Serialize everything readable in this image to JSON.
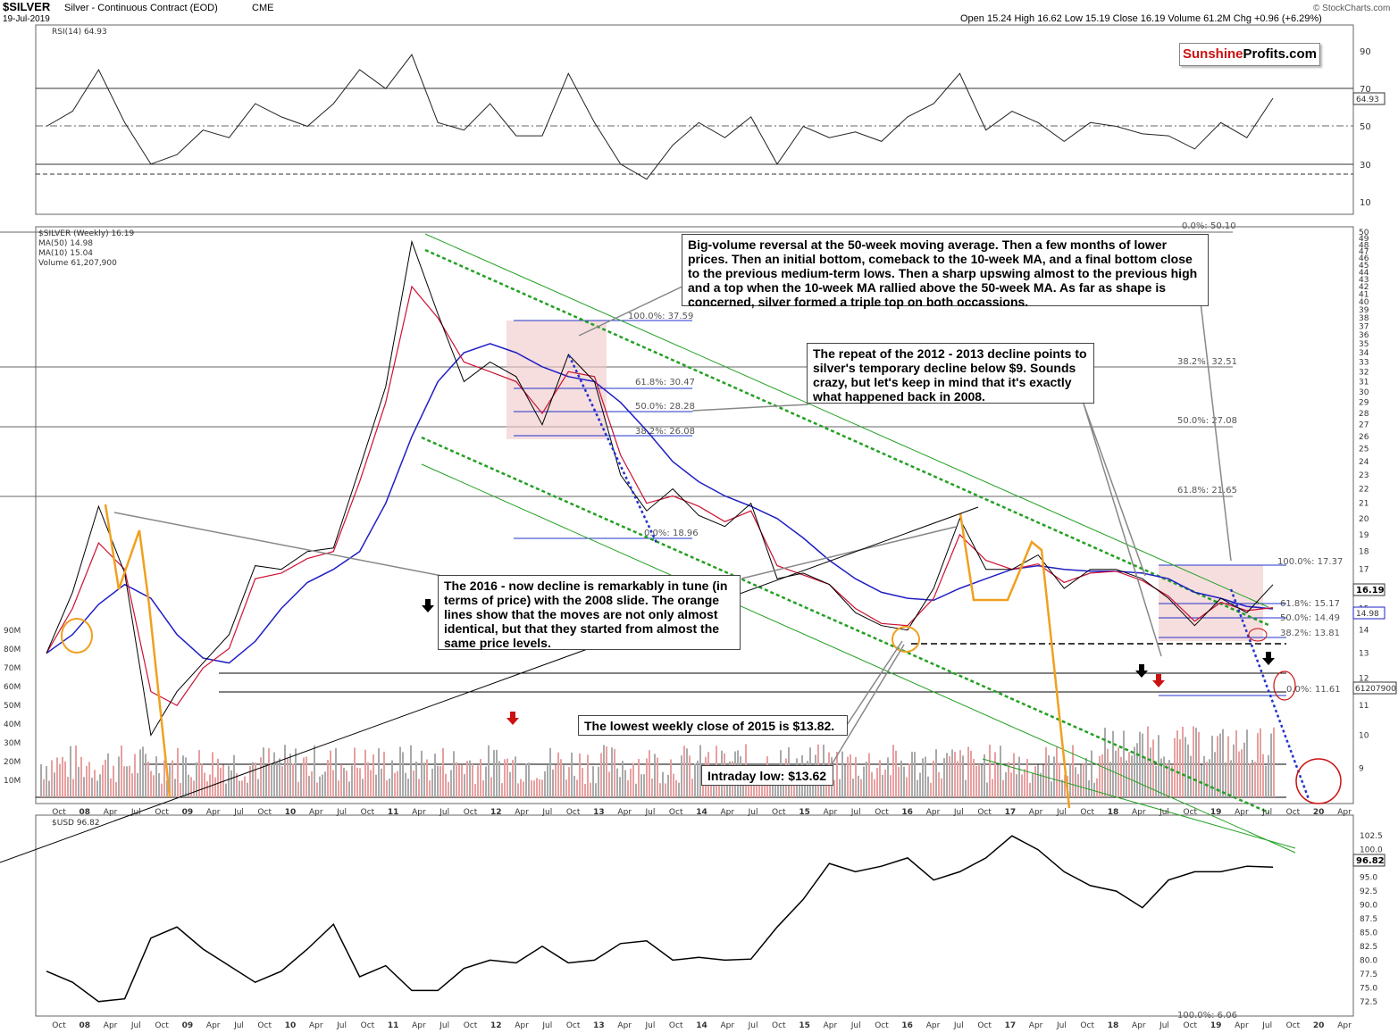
{
  "header": {
    "symbol": "$SILVER",
    "name": "Silver - Continuous Contract (EOD)",
    "exchange": "CME",
    "date": "19-Jul-2019",
    "ohlc": "Open 15.24  High 16.62  Low 15.19  Close 16.19  Volume 61.2M  Chg +0.96 (+6.29%)",
    "copyright": "© StockCharts.com"
  },
  "brand": {
    "part1": "Sunshine",
    "part2": "Profits.com"
  },
  "rsi": {
    "label": "RSI(14) 64.93",
    "current": "64.93",
    "y_ticks": [
      "90",
      "70",
      "50",
      "30",
      "10"
    ]
  },
  "price_legend": {
    "main": "$SILVER (Weekly) 16.19",
    "ma50": "MA(50) 14.98",
    "ma10": "MA(10) 15.04",
    "volume": "Volume 61,207,900"
  },
  "price_badges": {
    "close": "16.19",
    "ma50": "14.98",
    "volume": "61207900"
  },
  "usd": {
    "label": "$USD 96.82",
    "current": "96.82"
  },
  "annotations": {
    "a1": "Big-volume reversal at the 50-week moving average. Then a few months of lower prices. Then an initial bottom, comeback to the 10-week MA, and a final bottom close to the previous medium-term lows. Then a sharp upswing almost to the previous high and a top when the 10-week MA rallied above the 50-week MA. As far as shape is concerned, silver formed a triple top on both occassions.",
    "a2": "The repeat of the 2012 - 2013 decline points to silver's temporary decline below $9. Sounds crazy, but let's keep in mind that it's exactly what happened back in 2008.",
    "a3": "The 2016 - now decline is remarkably in tune (in terms of price) with the 2008 slide. The orange lines show that the moves are not only almost identical, but that they started from almost the same price levels.",
    "a4": "The lowest weekly close of 2015 is $13.82.",
    "a5": "Intraday low: $13.62"
  },
  "fib_left": [
    "100.0%: 37.59",
    "61.8%: 30.47",
    "50.0%: 28.28",
    "38.2%: 26.08",
    "0.0%: 18.96"
  ],
  "fib_right_big": [
    "0.0%: 50.10",
    "38.2%: 32.51",
    "50.0%: 27.08",
    "61.8%: 21.65",
    "100.0%: 6.06"
  ],
  "fib_recent": [
    "100.0%: 17.37",
    "61.8%: 15.17",
    "50.0%: 14.49",
    "38.2%: 13.81",
    "0.0%: 11.61"
  ],
  "colors": {
    "price": "#000000",
    "ma50": "#1f1fc4",
    "ma10": "#cc1133",
    "channel": "#22a022",
    "fibline": "#2233cc",
    "orange": "#f0a020",
    "box": "#f0c8c8",
    "vol_up": "#aaaaaa",
    "vol_down": "#e8a0a0"
  },
  "chart_data": [
    {
      "type": "line",
      "title": "RSI(14) 64.93",
      "ylim": [
        10,
        90
      ],
      "y_ticks": [
        90,
        70,
        50,
        30,
        10
      ],
      "reference_lines": [
        70,
        50,
        30
      ],
      "x": [
        "2007-10",
        "2008-01",
        "2008-04",
        "2008-07",
        "2008-10",
        "2009-01",
        "2009-04",
        "2009-07",
        "2009-10",
        "2010-01",
        "2010-04",
        "2010-07",
        "2010-10",
        "2011-01",
        "2011-04",
        "2011-07",
        "2011-10",
        "2012-01",
        "2012-04",
        "2012-07",
        "2012-10",
        "2013-01",
        "2013-04",
        "2013-07",
        "2013-10",
        "2014-01",
        "2014-04",
        "2014-07",
        "2014-10",
        "2015-01",
        "2015-04",
        "2015-07",
        "2015-10",
        "2016-01",
        "2016-04",
        "2016-07",
        "2016-10",
        "2017-01",
        "2017-04",
        "2017-07",
        "2017-10",
        "2018-01",
        "2018-04",
        "2018-07",
        "2018-10",
        "2019-01",
        "2019-04",
        "2019-07"
      ],
      "values": [
        50,
        58,
        80,
        52,
        30,
        35,
        48,
        44,
        62,
        55,
        50,
        62,
        80,
        70,
        88,
        52,
        48,
        62,
        45,
        45,
        78,
        52,
        30,
        22,
        40,
        52,
        44,
        55,
        30,
        50,
        44,
        47,
        42,
        55,
        62,
        78,
        48,
        58,
        52,
        42,
        52,
        50,
        46,
        45,
        38,
        52,
        44,
        64.93
      ]
    },
    {
      "type": "line",
      "title": "$SILVER (Weekly) 16.19",
      "series": [
        {
          "name": "$SILVER (Weekly) 16.19",
          "values": [
            13.0,
            15.8,
            20.8,
            16.8,
            10.0,
            11.5,
            12.6,
            13.8,
            17.2,
            17.0,
            18.0,
            18.2,
            23.5,
            30.5,
            48.5,
            38.5,
            31.0,
            33.0,
            31.5,
            27.0,
            33.8,
            31.0,
            23.0,
            20.5,
            22.0,
            20.2,
            19.5,
            21.0,
            16.5,
            16.8,
            16.2,
            14.8,
            14.2,
            14.0,
            16.0,
            20.0,
            17.0,
            17.0,
            17.8,
            16.0,
            17.0,
            17.0,
            16.5,
            15.5,
            14.2,
            15.5,
            14.8,
            16.19
          ]
        },
        {
          "name": "MA(50) 14.98",
          "values": [
            13.0,
            13.8,
            15.2,
            16.2,
            15.5,
            13.8,
            12.8,
            12.6,
            13.5,
            15.0,
            16.3,
            17.0,
            18.0,
            21.0,
            26.0,
            31.0,
            34.0,
            35.0,
            34.0,
            32.5,
            31.5,
            31.0,
            29.0,
            26.5,
            24.0,
            22.5,
            21.5,
            20.8,
            20.0,
            18.8,
            17.5,
            16.5,
            15.8,
            15.5,
            15.4,
            16.0,
            16.5,
            17.0,
            17.2,
            17.0,
            16.9,
            16.9,
            16.8,
            16.5,
            15.8,
            15.5,
            15.1,
            14.98
          ]
        },
        {
          "name": "MA(10) 15.04",
          "values": [
            13.0,
            15.0,
            18.5,
            17.0,
            11.5,
            11.0,
            12.4,
            13.2,
            16.5,
            16.8,
            17.6,
            18.0,
            22.5,
            29.0,
            42.0,
            38.0,
            33.0,
            32.0,
            31.0,
            28.0,
            32.0,
            31.5,
            24.5,
            21.0,
            21.5,
            20.8,
            19.8,
            20.5,
            17.2,
            16.7,
            16.2,
            15.0,
            14.3,
            14.2,
            15.5,
            19.0,
            17.5,
            17.0,
            17.3,
            16.3,
            16.8,
            16.9,
            16.4,
            15.6,
            14.4,
            15.3,
            14.9,
            15.04
          ]
        }
      ],
      "x": [
        "2007-10",
        "2008-01",
        "2008-04",
        "2008-07",
        "2008-10",
        "2009-01",
        "2009-04",
        "2009-07",
        "2009-10",
        "2010-01",
        "2010-04",
        "2010-07",
        "2010-10",
        "2011-01",
        "2011-04",
        "2011-07",
        "2011-10",
        "2012-01",
        "2012-04",
        "2012-07",
        "2012-10",
        "2013-01",
        "2013-04",
        "2013-07",
        "2013-10",
        "2014-01",
        "2014-04",
        "2014-07",
        "2014-10",
        "2015-01",
        "2015-04",
        "2015-07",
        "2015-10",
        "2016-01",
        "2016-04",
        "2016-07",
        "2016-10",
        "2017-01",
        "2017-04",
        "2017-07",
        "2017-10",
        "2018-01",
        "2018-04",
        "2018-07",
        "2018-10",
        "2019-01",
        "2019-04",
        "2019-07"
      ],
      "ylim": [
        8,
        50
      ],
      "log_scale": true,
      "y_ticks": [
        50,
        49,
        48,
        47,
        46,
        45,
        44,
        43,
        42,
        41,
        40,
        39,
        38,
        37,
        36,
        35,
        34,
        33,
        32,
        31,
        30,
        29,
        28,
        27,
        26,
        25,
        24,
        23,
        22,
        21,
        20,
        19,
        18,
        17,
        16,
        15,
        14,
        13,
        12,
        11,
        10,
        9
      ],
      "volume_ticks": [
        "90M",
        "80M",
        "70M",
        "60M",
        "50M",
        "40M",
        "30M",
        "20M",
        "10M"
      ],
      "x_ticks": [
        "Oct",
        "08",
        "Apr",
        "Jul",
        "Oct",
        "09",
        "Apr",
        "Jul",
        "Oct",
        "10",
        "Apr",
        "Jul",
        "Oct",
        "11",
        "Apr",
        "Jul",
        "Oct",
        "12",
        "Apr",
        "Jul",
        "Oct",
        "13",
        "Apr",
        "Jul",
        "Oct",
        "14",
        "Apr",
        "Jul",
        "Oct",
        "15",
        "Apr",
        "Jul",
        "Oct",
        "16",
        "Apr",
        "Jul",
        "Oct",
        "17",
        "Apr",
        "Jul",
        "Oct",
        "18",
        "Apr",
        "Jul",
        "Oct",
        "19",
        "Apr",
        "Jul",
        "Oct",
        "20",
        "Apr"
      ]
    },
    {
      "type": "line",
      "title": "$USD 96.82",
      "x": [
        "2007-10",
        "2008-01",
        "2008-04",
        "2008-07",
        "2008-10",
        "2009-01",
        "2009-04",
        "2009-07",
        "2009-10",
        "2010-01",
        "2010-04",
        "2010-07",
        "2010-10",
        "2011-01",
        "2011-04",
        "2011-07",
        "2011-10",
        "2012-01",
        "2012-04",
        "2012-07",
        "2012-10",
        "2013-01",
        "2013-04",
        "2013-07",
        "2013-10",
        "2014-01",
        "2014-04",
        "2014-07",
        "2014-10",
        "2015-01",
        "2015-04",
        "2015-07",
        "2015-10",
        "2016-01",
        "2016-04",
        "2016-07",
        "2016-10",
        "2017-01",
        "2017-04",
        "2017-07",
        "2017-10",
        "2018-01",
        "2018-04",
        "2018-07",
        "2018-10",
        "2019-01",
        "2019-04",
        "2019-07"
      ],
      "values": [
        78.0,
        76.0,
        72.5,
        73.0,
        84.0,
        86.0,
        82.0,
        79.0,
        76.0,
        78.0,
        82.0,
        86.5,
        77.0,
        79.0,
        74.5,
        74.5,
        78.5,
        80.0,
        79.5,
        82.5,
        79.5,
        80.0,
        83.0,
        83.5,
        80.0,
        80.5,
        80.0,
        80.2,
        86.0,
        91.0,
        97.5,
        96.0,
        97.0,
        98.5,
        94.5,
        96.0,
        98.5,
        102.5,
        100.0,
        96.0,
        93.5,
        92.5,
        89.5,
        94.5,
        96.0,
        96.0,
        97.0,
        96.82
      ],
      "ylim": [
        72.5,
        102.5
      ],
      "y_ticks": [
        102.5,
        100.0,
        97.5,
        95.0,
        92.5,
        90.0,
        87.5,
        85.0,
        82.5,
        80.0,
        77.5,
        75.0,
        72.5
      ]
    }
  ]
}
